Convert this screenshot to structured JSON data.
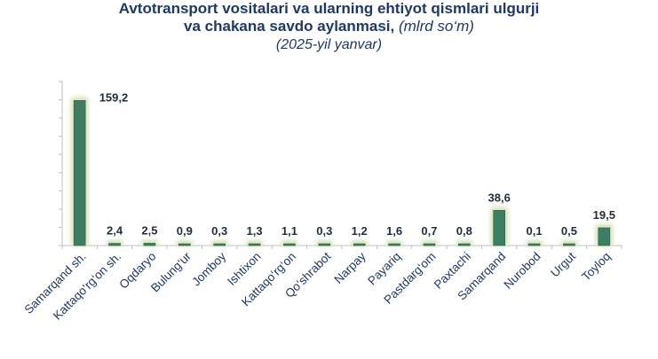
{
  "chart_data": {
    "type": "bar",
    "title_line1": "Avtotransport vositalari va ularning ehtiyot qismlari ulgurji",
    "title_line2": "va chakana savdo aylanmasi,",
    "title_unit": "(mlrd so‘m)",
    "subtitle": "(2025-yil yanvar)",
    "categories": [
      "Samarqand sh.",
      "Kattaqo‘rg‘on sh.",
      "Oqdaryo",
      "Bulung‘ur",
      "Jomboy",
      "Ishtixon",
      "Kattaqo‘rg‘on",
      "Qo‘shrabot",
      "Narpay",
      "Payariq",
      "Pastdarg‘om",
      "Paxtachi",
      "Samarqand",
      "Nurobod",
      "Urgut",
      "Toyloq"
    ],
    "values": [
      159.2,
      2.4,
      2.5,
      0.9,
      0.3,
      1.3,
      1.1,
      0.3,
      1.2,
      1.6,
      0.7,
      0.8,
      38.6,
      0.1,
      0.5,
      19.5
    ],
    "value_labels": [
      "159,2",
      "2,4",
      "2,5",
      "0,9",
      "0,3",
      "1,3",
      "1,1",
      "0,3",
      "1,2",
      "1,6",
      "0,7",
      "0,8",
      "38,6",
      "0,1",
      "0,5",
      "19,5"
    ],
    "ylim": [
      0,
      180
    ],
    "xlabel": "",
    "ylabel": "",
    "grid": false,
    "legend": "none",
    "colors": {
      "bar_fill": "#3f7d63",
      "bar_glow": "#d6e4b8",
      "axis": "#bfbfbf",
      "title": "#1f3864",
      "value_label": "#1f2d3d"
    }
  }
}
